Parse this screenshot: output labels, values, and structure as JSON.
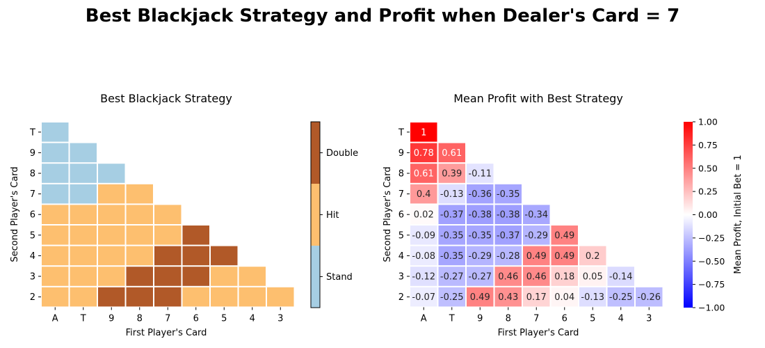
{
  "figure": {
    "title": "Best Blackjack Strategy and Profit when Dealer's Card = 7"
  },
  "chart_data": [
    {
      "type": "heatmap",
      "title": "Best Blackjack Strategy",
      "xlabel": "First Player's Card",
      "ylabel": "Second Player's Card",
      "x_categories": [
        "A",
        "T",
        "9",
        "8",
        "7",
        "6",
        "5",
        "4",
        "3"
      ],
      "y_categories": [
        "T",
        "9",
        "8",
        "7",
        "6",
        "5",
        "4",
        "3",
        "2"
      ],
      "legend": {
        "type": "colorbar",
        "position": "right",
        "labels": [
          "Stand",
          "Hit",
          "Double"
        ],
        "colors": [
          "#a6cee3",
          "#fdbf6f",
          "#b15928"
        ]
      },
      "values": [
        [
          "Stand",
          null,
          null,
          null,
          null,
          null,
          null,
          null,
          null
        ],
        [
          "Stand",
          "Stand",
          null,
          null,
          null,
          null,
          null,
          null,
          null
        ],
        [
          "Stand",
          "Stand",
          "Stand",
          null,
          null,
          null,
          null,
          null,
          null
        ],
        [
          "Stand",
          "Stand",
          "Hit",
          "Hit",
          null,
          null,
          null,
          null,
          null
        ],
        [
          "Hit",
          "Hit",
          "Hit",
          "Hit",
          "Hit",
          null,
          null,
          null,
          null
        ],
        [
          "Hit",
          "Hit",
          "Hit",
          "Hit",
          "Hit",
          "Double",
          null,
          null,
          null
        ],
        [
          "Hit",
          "Hit",
          "Hit",
          "Hit",
          "Double",
          "Double",
          "Double",
          null,
          null
        ],
        [
          "Hit",
          "Hit",
          "Hit",
          "Double",
          "Double",
          "Double",
          "Hit",
          "Hit",
          null
        ],
        [
          "Hit",
          "Hit",
          "Double",
          "Double",
          "Double",
          "Hit",
          "Hit",
          "Hit",
          "Hit"
        ]
      ]
    },
    {
      "type": "heatmap",
      "title": "Mean Profit with Best Strategy",
      "xlabel": "First Player's Card",
      "ylabel": "Second Player's Card",
      "x_categories": [
        "A",
        "T",
        "9",
        "8",
        "7",
        "6",
        "5",
        "4",
        "3"
      ],
      "y_categories": [
        "T",
        "9",
        "8",
        "7",
        "6",
        "5",
        "4",
        "3",
        "2"
      ],
      "colorbar": {
        "label": "Mean Profit, Initial Bet = 1",
        "range": [
          -1.0,
          1.0
        ],
        "ticks": [
          "1.00",
          "0.75",
          "0.50",
          "0.25",
          "0.00",
          "−0.25",
          "−0.50",
          "−0.75",
          "−1.00"
        ],
        "colormap": "bwr",
        "position": "right"
      },
      "values": [
        [
          1,
          null,
          null,
          null,
          null,
          null,
          null,
          null,
          null
        ],
        [
          0.78,
          0.61,
          null,
          null,
          null,
          null,
          null,
          null,
          null
        ],
        [
          0.61,
          0.39,
          -0.11,
          null,
          null,
          null,
          null,
          null,
          null
        ],
        [
          0.4,
          -0.13,
          -0.36,
          -0.35,
          null,
          null,
          null,
          null,
          null
        ],
        [
          0.02,
          -0.37,
          -0.38,
          -0.38,
          -0.34,
          null,
          null,
          null,
          null
        ],
        [
          -0.09,
          -0.35,
          -0.35,
          -0.37,
          -0.29,
          0.49,
          null,
          null,
          null
        ],
        [
          -0.08,
          -0.35,
          -0.29,
          -0.28,
          0.49,
          0.49,
          0.2,
          null,
          null
        ],
        [
          -0.12,
          -0.27,
          -0.27,
          0.46,
          0.46,
          0.18,
          0.05,
          -0.14,
          null
        ],
        [
          -0.07,
          -0.25,
          0.49,
          0.43,
          0.17,
          0.04,
          -0.13,
          -0.25,
          -0.26
        ]
      ]
    }
  ]
}
